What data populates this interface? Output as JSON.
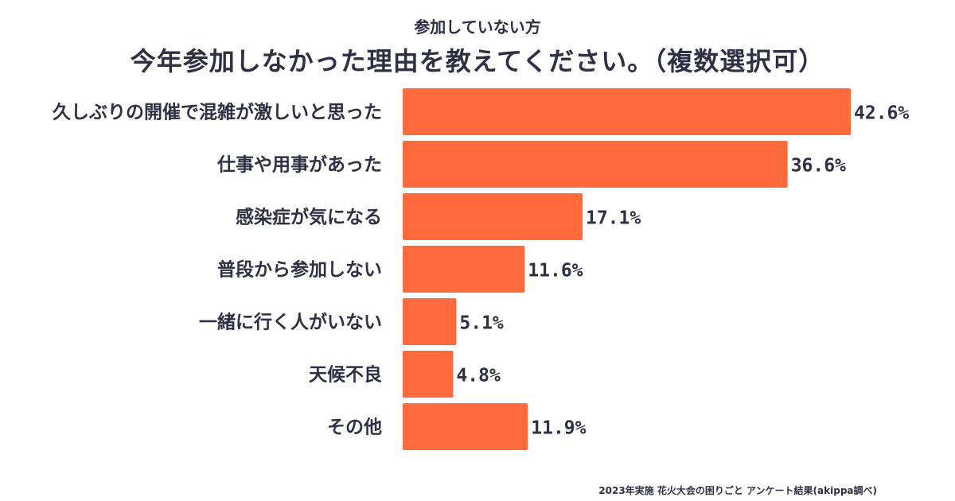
{
  "header": {
    "subtitle": "参加していない方",
    "title": "今年参加しなかった理由を教えてください。（複数選択可）"
  },
  "chart_data": {
    "type": "bar",
    "orientation": "horizontal",
    "categories": [
      "久しぶりの開催で混雑が激しいと思った",
      "仕事や用事があった",
      "感染症が気になる",
      "普段から参加しない",
      "一緒に行く人がいない",
      "天候不良",
      "その他"
    ],
    "values": [
      42.6,
      36.6,
      17.1,
      11.6,
      5.1,
      4.8,
      11.9
    ],
    "value_labels": [
      "42.6%",
      "36.6%",
      "17.1%",
      "11.6%",
      "5.1%",
      "4.8%",
      "11.9%"
    ],
    "unit": "%",
    "xlim": [
      0,
      42.6
    ],
    "grid": false,
    "legend": "none",
    "bar_color": "#ff6b3d",
    "text_color": "#2f3044"
  },
  "footer": {
    "note": "2023年実施 花火大会の困りごと アンケート結果(akippa調べ)"
  }
}
